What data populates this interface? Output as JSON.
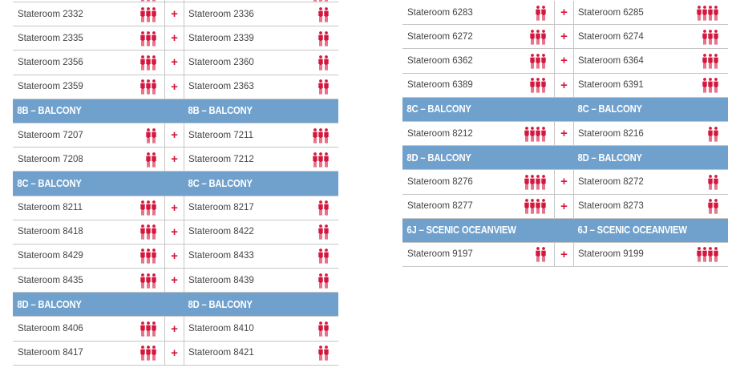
{
  "colors": {
    "header_bg": "#70a1cd",
    "accent_red": "#d4183d",
    "divider": "#c6c6c6",
    "text": "#444444"
  },
  "plus_symbol": "+",
  "left_column": [
    {
      "kind": "row",
      "a": "Stateroom 2332",
      "a_guests": 3,
      "b": "",
      "b_guests": 3
    },
    {
      "kind": "row",
      "a": "Stateroom 2332",
      "a_guests": 3,
      "b": "Stateroom 2336",
      "b_guests": 2
    },
    {
      "kind": "row",
      "a": "Stateroom 2335",
      "a_guests": 3,
      "b": "Stateroom 2339",
      "b_guests": 2
    },
    {
      "kind": "row",
      "a": "Stateroom 2356",
      "a_guests": 3,
      "b": "Stateroom 2360",
      "b_guests": 2
    },
    {
      "kind": "row",
      "a": "Stateroom 2359",
      "a_guests": 3,
      "b": "Stateroom 2363",
      "b_guests": 2
    },
    {
      "kind": "header",
      "a": "8B – BALCONY",
      "b": "8B – BALCONY"
    },
    {
      "kind": "row",
      "a": "Stateroom 7207",
      "a_guests": 2,
      "b": "Stateroom 7211",
      "b_guests": 3
    },
    {
      "kind": "row",
      "a": "Stateroom 7208",
      "a_guests": 2,
      "b": "Stateroom 7212",
      "b_guests": 3
    },
    {
      "kind": "header",
      "a": "8C – BALCONY",
      "b": "8C – BALCONY"
    },
    {
      "kind": "row",
      "a": "Stateroom 8211",
      "a_guests": 3,
      "b": "Stateroom 8217",
      "b_guests": 2
    },
    {
      "kind": "row",
      "a": "Stateroom 8418",
      "a_guests": 3,
      "b": "Stateroom 8422",
      "b_guests": 2
    },
    {
      "kind": "row",
      "a": "Stateroom 8429",
      "a_guests": 3,
      "b": "Stateroom 8433",
      "b_guests": 2
    },
    {
      "kind": "row",
      "a": "Stateroom 8435",
      "a_guests": 3,
      "b": "Stateroom 8439",
      "b_guests": 2
    },
    {
      "kind": "header",
      "a": "8D – BALCONY",
      "b": "8D – BALCONY"
    },
    {
      "kind": "row",
      "a": "Stateroom 8406",
      "a_guests": 3,
      "b": "Stateroom 8410",
      "b_guests": 2
    },
    {
      "kind": "row",
      "a": "Stateroom 8417",
      "a_guests": 3,
      "b": "Stateroom 8421",
      "b_guests": 2
    }
  ],
  "right_column": [
    {
      "kind": "row",
      "a": "Stateroom 6283",
      "a_guests": 2,
      "b": "Stateroom 6285",
      "b_guests": 4
    },
    {
      "kind": "row",
      "a": "Stateroom 6272",
      "a_guests": 3,
      "b": "Stateroom 6274",
      "b_guests": 3
    },
    {
      "kind": "row",
      "a": "Stateroom 6362",
      "a_guests": 3,
      "b": "Stateroom 6364",
      "b_guests": 3
    },
    {
      "kind": "row",
      "a": "Stateroom 6389",
      "a_guests": 3,
      "b": "Stateroom 6391",
      "b_guests": 3
    },
    {
      "kind": "header",
      "a": "8C – BALCONY",
      "b": "8C – BALCONY"
    },
    {
      "kind": "row",
      "a": "Stateroom 8212",
      "a_guests": 4,
      "b": "Stateroom 8216",
      "b_guests": 2
    },
    {
      "kind": "header",
      "a": "8D – BALCONY",
      "b": "8D – BALCONY"
    },
    {
      "kind": "row",
      "a": "Stateroom 8276",
      "a_guests": 4,
      "b": "Stateroom 8272",
      "b_guests": 2
    },
    {
      "kind": "row",
      "a": "Stateroom 8277",
      "a_guests": 4,
      "b": "Stateroom 8273",
      "b_guests": 2
    },
    {
      "kind": "header",
      "a": "6J – SCENIC OCEANVIEW",
      "b": "6J – SCENIC OCEANVIEW"
    },
    {
      "kind": "row",
      "a": "Stateroom 9197",
      "a_guests": 2,
      "b": "Stateroom 9199",
      "b_guests": 4
    }
  ]
}
